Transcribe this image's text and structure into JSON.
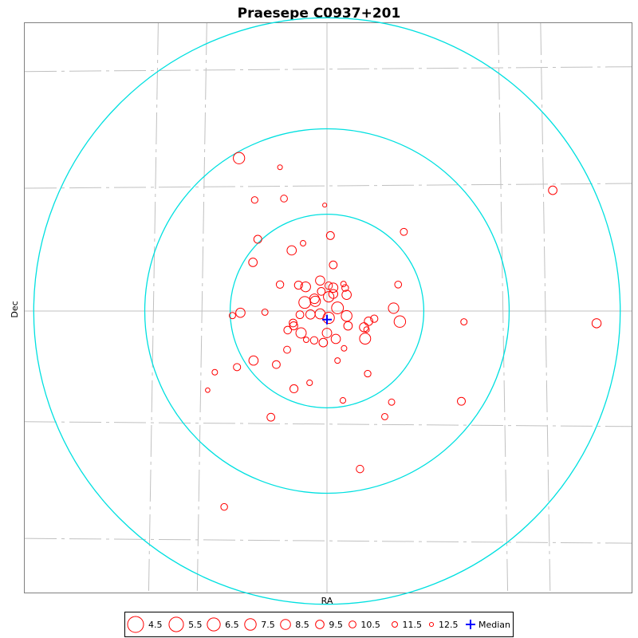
{
  "chart_data": {
    "type": "scatter",
    "title": "Praesepe  C0937+201",
    "xlabel": "RA",
    "ylabel": "Dec",
    "colors": {
      "frame": "#808080",
      "grid": "#c0c0c0",
      "rings": "#00e0e0",
      "stars": "#ff0000",
      "median": "#0000ff"
    },
    "center": [
      0,
      0
    ],
    "xlim": [
      -10.8,
      10.8
    ],
    "ylim": [
      -10.3,
      10.3
    ],
    "rings": [
      3.4,
      6.4,
      10.3
    ],
    "median": {
      "x": 0.0,
      "y": -0.3,
      "label": "Median"
    },
    "legend": [
      {
        "mag": 4.5,
        "label": "4.5"
      },
      {
        "mag": 5.5,
        "label": "5.5"
      },
      {
        "mag": 6.5,
        "label": "6.5"
      },
      {
        "mag": 7.5,
        "label": "7.5"
      },
      {
        "mag": 8.5,
        "label": "8.5"
      },
      {
        "mag": 9.5,
        "label": "9.5"
      },
      {
        "mag": 10.5,
        "label": "10.5"
      },
      {
        "mag": 11.5,
        "label": "11.5"
      },
      {
        "mag": 12.5,
        "label": "12.5"
      }
    ],
    "stars": [
      {
        "x": -3.09,
        "y": 5.37,
        "mag": 7.6
      },
      {
        "x": -1.65,
        "y": 5.05,
        "mag": 12.0
      },
      {
        "x": -0.08,
        "y": 3.72,
        "mag": 12.5
      },
      {
        "x": -2.54,
        "y": 3.9,
        "mag": 10.8
      },
      {
        "x": -1.51,
        "y": 3.95,
        "mag": 10.6
      },
      {
        "x": 7.93,
        "y": 4.24,
        "mag": 9.5
      },
      {
        "x": -2.43,
        "y": 2.52,
        "mag": 9.9
      },
      {
        "x": -0.84,
        "y": 2.38,
        "mag": 11.5
      },
      {
        "x": 0.12,
        "y": 2.65,
        "mag": 9.9
      },
      {
        "x": 2.7,
        "y": 2.78,
        "mag": 10.5
      },
      {
        "x": -1.24,
        "y": 2.13,
        "mag": 9.0
      },
      {
        "x": -2.6,
        "y": 1.71,
        "mag": 9.5
      },
      {
        "x": 0.22,
        "y": 1.62,
        "mag": 10.0
      },
      {
        "x": -0.24,
        "y": 1.07,
        "mag": 9.0
      },
      {
        "x": -1.65,
        "y": 0.93,
        "mag": 10.2
      },
      {
        "x": -1.0,
        "y": 0.91,
        "mag": 9.8
      },
      {
        "x": -0.75,
        "y": 0.85,
        "mag": 8.6
      },
      {
        "x": 0.06,
        "y": 0.89,
        "mag": 10.2
      },
      {
        "x": 0.22,
        "y": 0.82,
        "mag": 9.0
      },
      {
        "x": 0.58,
        "y": 0.95,
        "mag": 11.5
      },
      {
        "x": 0.64,
        "y": 0.81,
        "mag": 10.7
      },
      {
        "x": 2.5,
        "y": 0.93,
        "mag": 10.6
      },
      {
        "x": -0.2,
        "y": 0.69,
        "mag": 10.0
      },
      {
        "x": 0.69,
        "y": 0.57,
        "mag": 9.0
      },
      {
        "x": -0.44,
        "y": 0.43,
        "mag": 8.8
      },
      {
        "x": 0.06,
        "y": 0.5,
        "mag": 8.2
      },
      {
        "x": 0.22,
        "y": 0.6,
        "mag": 9.2
      },
      {
        "x": -0.78,
        "y": 0.3,
        "mag": 7.3
      },
      {
        "x": -0.41,
        "y": 0.34,
        "mag": 8.3
      },
      {
        "x": 0.37,
        "y": 0.11,
        "mag": 7.3
      },
      {
        "x": 2.34,
        "y": 0.1,
        "mag": 8.2
      },
      {
        "x": -3.04,
        "y": -0.06,
        "mag": 9.0
      },
      {
        "x": -3.32,
        "y": -0.16,
        "mag": 11.0
      },
      {
        "x": -2.18,
        "y": -0.04,
        "mag": 11.0
      },
      {
        "x": -0.95,
        "y": -0.13,
        "mag": 10.0
      },
      {
        "x": -0.58,
        "y": -0.12,
        "mag": 9.0
      },
      {
        "x": -0.24,
        "y": -0.1,
        "mag": 8.5
      },
      {
        "x": 0.06,
        "y": -0.24,
        "mag": 7.6
      },
      {
        "x": 0.69,
        "y": -0.17,
        "mag": 8.0
      },
      {
        "x": 1.66,
        "y": -0.27,
        "mag": 10.3
      },
      {
        "x": 1.46,
        "y": -0.36,
        "mag": 9.5
      },
      {
        "x": 2.56,
        "y": -0.37,
        "mag": 7.5
      },
      {
        "x": 9.47,
        "y": -0.43,
        "mag": 9.1
      },
      {
        "x": 4.81,
        "y": -0.38,
        "mag": 11.0
      },
      {
        "x": -1.19,
        "y": -0.42,
        "mag": 10.0
      },
      {
        "x": -1.17,
        "y": -0.52,
        "mag": 9.8
      },
      {
        "x": 0.74,
        "y": -0.52,
        "mag": 9.5
      },
      {
        "x": 1.3,
        "y": -0.57,
        "mag": 9.1
      },
      {
        "x": -1.38,
        "y": -0.67,
        "mag": 10.1
      },
      {
        "x": -0.91,
        "y": -0.77,
        "mag": 8.3
      },
      {
        "x": 0.0,
        "y": -0.77,
        "mag": 8.9
      },
      {
        "x": 1.39,
        "y": -0.65,
        "mag": 11.5
      },
      {
        "x": -0.73,
        "y": -1.01,
        "mag": 11.5
      },
      {
        "x": -0.45,
        "y": -1.03,
        "mag": 10.2
      },
      {
        "x": -0.13,
        "y": -1.11,
        "mag": 9.5
      },
      {
        "x": 0.31,
        "y": -0.98,
        "mag": 9.0
      },
      {
        "x": 1.34,
        "y": -0.97,
        "mag": 7.8
      },
      {
        "x": -1.4,
        "y": -1.36,
        "mag": 10.5
      },
      {
        "x": 0.6,
        "y": -1.31,
        "mag": 11.5
      },
      {
        "x": -2.58,
        "y": -1.74,
        "mag": 9.0
      },
      {
        "x": -1.78,
        "y": -1.88,
        "mag": 10.0
      },
      {
        "x": 0.37,
        "y": -1.74,
        "mag": 11.5
      },
      {
        "x": -3.16,
        "y": -1.97,
        "mag": 10.4
      },
      {
        "x": -3.94,
        "y": -2.15,
        "mag": 11.5
      },
      {
        "x": 1.43,
        "y": -2.2,
        "mag": 10.8
      },
      {
        "x": -0.61,
        "y": -2.52,
        "mag": 11.4
      },
      {
        "x": -1.16,
        "y": -2.73,
        "mag": 9.8
      },
      {
        "x": -4.19,
        "y": -2.78,
        "mag": 12.2
      },
      {
        "x": 0.56,
        "y": -3.14,
        "mag": 11.4
      },
      {
        "x": 2.27,
        "y": -3.2,
        "mag": 11.0
      },
      {
        "x": 4.72,
        "y": -3.17,
        "mag": 9.9
      },
      {
        "x": -1.97,
        "y": -3.73,
        "mag": 10.0
      },
      {
        "x": 2.03,
        "y": -3.71,
        "mag": 11.0
      },
      {
        "x": 1.16,
        "y": -5.55,
        "mag": 10.2
      },
      {
        "x": -3.61,
        "y": -6.88,
        "mag": 10.7
      }
    ]
  }
}
